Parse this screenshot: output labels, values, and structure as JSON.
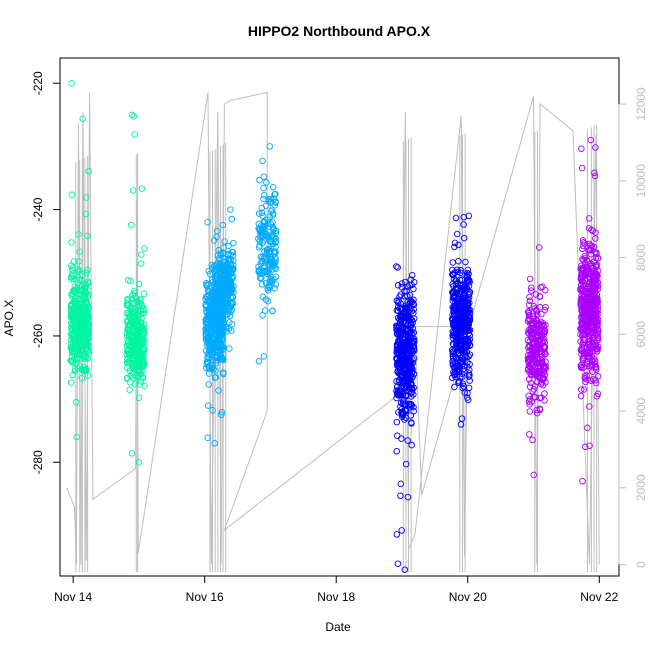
{
  "chart_data": {
    "type": "scatter",
    "title": "HIPPO2 Northbound APO.X",
    "xlabel": "Date",
    "ylabel": "APO.X",
    "x_tick_labels": [
      "Nov 14",
      "Nov 16",
      "Nov 18",
      "Nov 20",
      "Nov 22"
    ],
    "x_tick_values": [
      14,
      16,
      18,
      20,
      22
    ],
    "xlim": [
      13.8,
      22.3
    ],
    "ylim": [
      -298,
      -216
    ],
    "y_ticks": [
      -220,
      -240,
      -260,
      -280
    ],
    "y2_ticks": [
      0,
      2000,
      4000,
      6000,
      8000,
      10000,
      12000
    ],
    "y2lim": [
      -300,
      13200
    ],
    "grid": false,
    "series": [
      {
        "color": "#00f5a0",
        "clusters": [
          {
            "x": 14.1,
            "center": -258,
            "spread": 5,
            "min": -276,
            "max": -220,
            "n": 420
          },
          {
            "x": 14.95,
            "center": -261,
            "spread": 5,
            "min": -280,
            "max": -225,
            "n": 320
          }
        ]
      },
      {
        "color": "#00aaff",
        "clusters": [
          {
            "x": 16.15,
            "center": -258,
            "spread": 5,
            "min": -277,
            "max": -242,
            "n": 380
          },
          {
            "x": 16.3,
            "center": -252,
            "spread": 4,
            "min": -262,
            "max": -240,
            "n": 300
          },
          {
            "x": 16.95,
            "center": -246,
            "spread": 6,
            "min": -264,
            "max": -230,
            "n": 180
          }
        ]
      },
      {
        "color": "#0000ff",
        "clusters": [
          {
            "x": 19.05,
            "center": -263,
            "spread": 7,
            "min": -297,
            "max": -249,
            "n": 420
          },
          {
            "x": 19.9,
            "center": -258,
            "spread": 6,
            "min": -274,
            "max": -241,
            "n": 420
          }
        ]
      },
      {
        "color": "#aa00ff",
        "clusters": [
          {
            "x": 21.05,
            "center": -262,
            "spread": 6,
            "min": -282,
            "max": -246,
            "n": 260
          },
          {
            "x": 21.85,
            "center": -256,
            "spread": 7,
            "min": -283,
            "max": -229,
            "n": 460
          }
        ]
      }
    ],
    "altitude_series": {
      "color": "#bebebe",
      "path": [
        [
          13.9,
          2000
        ],
        [
          14.02,
          1500
        ],
        [
          14.05,
          0
        ],
        [
          14.08,
          11500
        ],
        [
          14.12,
          0
        ],
        [
          14.15,
          11800
        ],
        [
          14.2,
          100
        ],
        [
          14.25,
          12300
        ],
        [
          14.3,
          1700
        ],
        [
          14.95,
          2500
        ],
        [
          14.97,
          9500
        ],
        [
          14.99,
          300
        ],
        [
          16.05,
          12300
        ],
        [
          16.1,
          0
        ],
        [
          16.2,
          11800
        ],
        [
          16.25,
          0
        ],
        [
          16.3,
          12000
        ],
        [
          16.4,
          12100
        ],
        [
          16.95,
          12300
        ],
        [
          16.95,
          4000
        ],
        [
          16.3,
          900
        ],
        [
          19.0,
          4500
        ],
        [
          19.05,
          11800
        ],
        [
          19.1,
          400
        ],
        [
          19.2,
          800
        ],
        [
          19.9,
          11700
        ],
        [
          19.95,
          200
        ],
        [
          20.0,
          6200
        ],
        [
          19.2,
          6200
        ],
        [
          19.3,
          1800
        ],
        [
          21.0,
          12200
        ],
        [
          21.05,
          0
        ],
        [
          21.1,
          12000
        ],
        [
          21.6,
          11300
        ],
        [
          21.85,
          0
        ],
        [
          21.95,
          11200
        ],
        [
          22.0,
          0
        ]
      ],
      "spikes": [
        14.04,
        14.1,
        14.14,
        14.18,
        14.22,
        14.96,
        14.98,
        16.08,
        16.12,
        16.16,
        16.2,
        16.24,
        16.28,
        16.32,
        19.02,
        19.06,
        19.1,
        19.14,
        19.88,
        19.92,
        19.96,
        21.02,
        21.06,
        21.82,
        21.88,
        21.92,
        21.96
      ]
    }
  }
}
